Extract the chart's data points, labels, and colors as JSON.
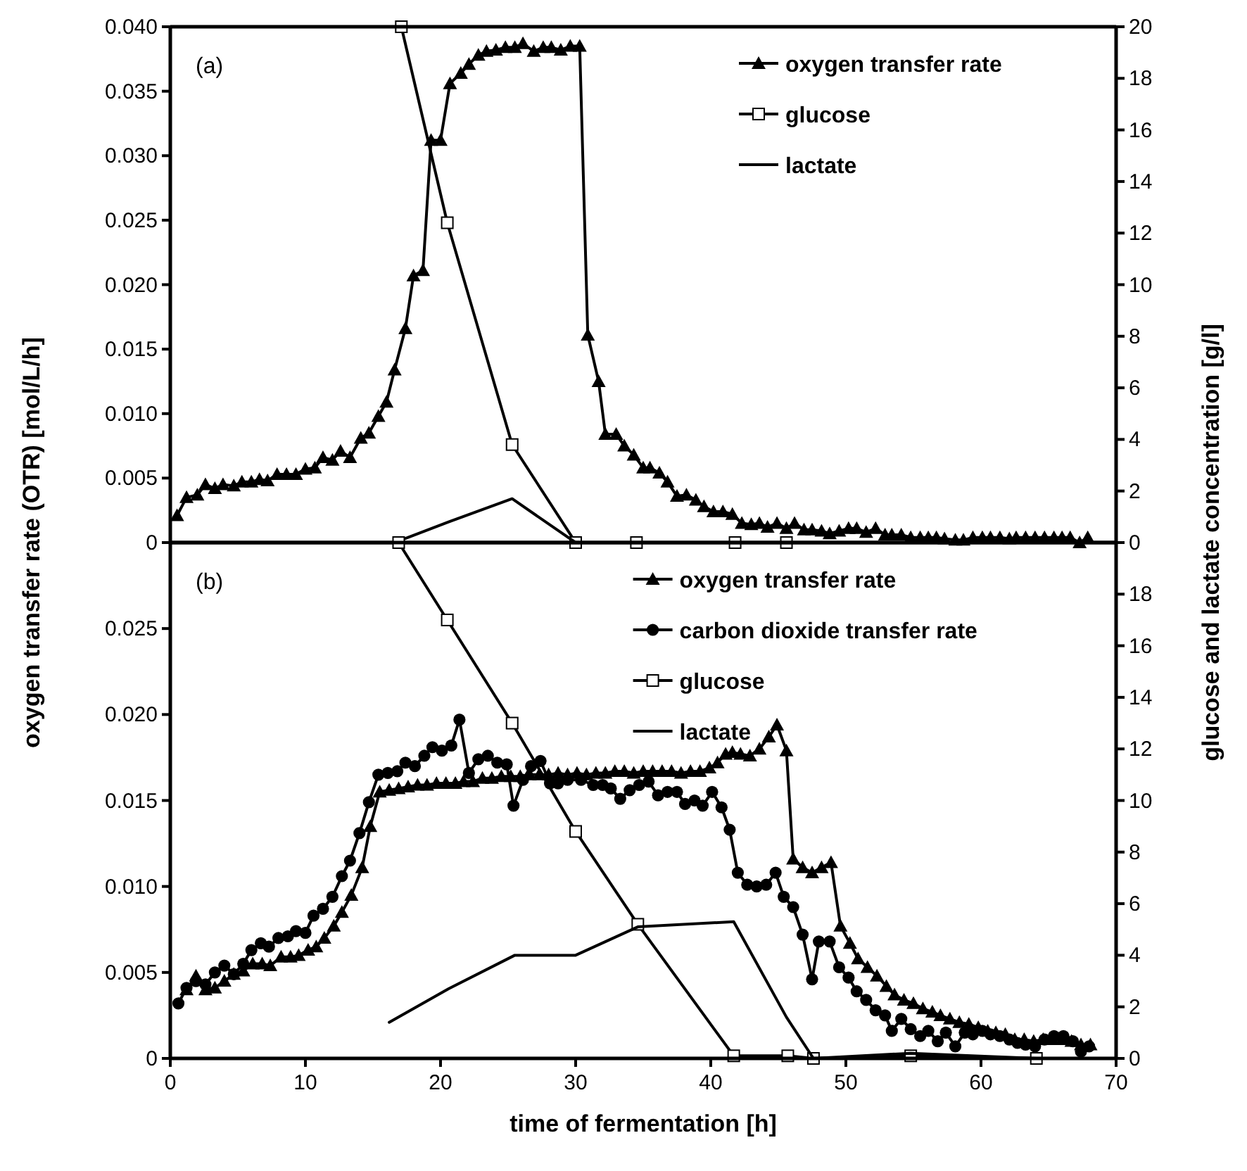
{
  "chart_data": [
    {
      "type": "line",
      "ylabel": "oxygen transfer rate (OTR)  [mol/L/h]",
      "y2label": "glucose and lactate concentration  [g/l]",
      "annotations": [
        "(a)"
      ],
      "xlim": [
        0,
        70
      ],
      "ylim": [
        0,
        0.04
      ],
      "yticks": [
        0,
        0.005,
        {
          "value": 0.01,
          "label": "0.010"
        },
        0.015,
        {
          "value": 0.02,
          "label": "0.020"
        },
        0.025,
        {
          "value": 0.03,
          "label": "0.030"
        },
        0.035,
        {
          "value": 0.04,
          "label": "0.040"
        }
      ],
      "y2lim": [
        0,
        20
      ],
      "y2ticks": [
        0,
        2,
        4,
        6,
        8,
        10,
        12,
        14,
        16,
        18,
        20
      ],
      "tick_labels": "y",
      "legend": "top right",
      "line_style": "solid",
      "series": [
        {
          "name": "oxygen transfer rate",
          "color": "#000000",
          "marker": "triangle",
          "x": [
            0.5,
            1.2,
            2.0,
            2.6,
            3.3,
            3.9,
            4.7,
            5.3,
            6.0,
            6.6,
            7.2,
            7.9,
            8.6,
            9.3,
            10.0,
            10.7,
            11.3,
            12.0,
            12.6,
            13.3,
            14.1,
            14.7,
            15.4,
            16.0,
            16.6,
            17.4,
            18.0,
            18.7,
            19.3,
            20.0,
            20.7,
            21.5,
            22.1,
            22.8,
            23.4,
            24.1,
            24.8,
            25.5,
            26.1,
            26.9,
            27.6,
            28.2,
            28.9,
            29.6,
            30.3,
            30.9,
            31.7,
            32.2,
            33.0,
            33.6,
            34.3,
            35.0,
            35.5,
            36.2,
            36.8,
            37.5,
            38.2,
            38.9,
            39.5,
            40.2,
            40.9,
            41.6,
            42.3,
            43.0,
            43.6,
            44.2,
            44.9,
            45.6,
            46.2,
            46.9,
            47.5,
            48.2,
            48.8,
            49.5,
            50.2,
            50.8,
            51.5,
            52.2,
            52.9,
            53.4,
            54.1,
            54.8,
            55.5,
            56.1,
            56.7,
            57.3,
            58.1,
            58.7,
            59.4,
            60.1,
            60.7,
            61.4,
            62.1,
            62.6,
            63.3,
            64.0,
            64.7,
            65.4,
            66.0,
            66.6,
            67.3,
            67.9
          ],
          "values": [
            0.0021,
            0.0035,
            0.0037,
            0.0045,
            0.0042,
            0.0045,
            0.0044,
            0.0047,
            0.0047,
            0.0049,
            0.0048,
            0.0053,
            0.0053,
            0.0053,
            0.0057,
            0.0058,
            0.0066,
            0.0064,
            0.0071,
            0.0066,
            0.0081,
            0.0085,
            0.0098,
            0.0109,
            0.0134,
            0.0166,
            0.0207,
            0.0211,
            0.0312,
            0.0312,
            0.0356,
            0.0364,
            0.0371,
            0.0378,
            0.0381,
            0.0382,
            0.0384,
            0.0384,
            0.0387,
            0.0381,
            0.0384,
            0.0384,
            0.0382,
            0.0385,
            0.0385,
            0.0161,
            0.0125,
            0.0084,
            0.0084,
            0.0075,
            0.0068,
            0.0058,
            0.0058,
            0.0054,
            0.0047,
            0.0036,
            0.0037,
            0.0033,
            0.0028,
            0.0024,
            0.0024,
            0.0022,
            0.0015,
            0.0014,
            0.0015,
            0.0012,
            0.0015,
            0.0011,
            0.0015,
            0.001,
            0.001,
            0.0009,
            0.0007,
            0.0009,
            0.0011,
            0.0011,
            0.0008,
            0.0011,
            0.0006,
            0.0006,
            0.0006,
            0.0004,
            0.0004,
            0.0004,
            0.0004,
            0.0003,
            0.0002,
            0.0002,
            0.0004,
            0.0004,
            0.0004,
            0.0004,
            0.0003,
            0.0004,
            0.0004,
            0.0004,
            0.0004,
            0.0004,
            0.0004,
            0.0004,
            0.0,
            0.0004
          ]
        },
        {
          "name": "glucose",
          "color": "#000000",
          "marker": "square",
          "axis": "y2",
          "x": [
            17.1,
            20.5,
            25.3,
            30.0,
            34.5,
            41.8,
            45.6
          ],
          "values": [
            20,
            12.4,
            3.8,
            0,
            0,
            0,
            0
          ]
        },
        {
          "name": "lactate",
          "color": "#000000",
          "marker": "none",
          "axis": "y2",
          "x": [
            16.6,
            20.6,
            25.3,
            30.0
          ],
          "values": [
            0,
            0.8,
            1.7,
            0
          ]
        }
      ]
    },
    {
      "type": "line",
      "xlabel": "time of fermentation  [h]",
      "annotations": [
        "(b)"
      ],
      "xlim": [
        0,
        70
      ],
      "xticks": [
        0,
        10,
        20,
        30,
        40,
        50,
        60,
        70
      ],
      "ylim": [
        0,
        0.03
      ],
      "yticks": [
        0,
        0.005,
        {
          "value": 0.01,
          "label": "0.010"
        },
        0.015,
        {
          "value": 0.02,
          "label": "0.020"
        },
        0.025
      ],
      "y2lim": [
        0,
        20
      ],
      "y2ticks": [
        0,
        2,
        4,
        6,
        8,
        10,
        12,
        14,
        16,
        18
      ],
      "legend": "top right",
      "line_style": "solid",
      "series": [
        {
          "name": "oxygen transfer rate",
          "color": "#000000",
          "marker": "triangle",
          "x": [
            1.2,
            1.9,
            2.6,
            3.3,
            4.0,
            4.7,
            5.4,
            6.1,
            6.8,
            7.4,
            8.2,
            8.9,
            9.5,
            10.2,
            10.8,
            11.4,
            12.1,
            12.7,
            13.4,
            14.2,
            14.8,
            15.5,
            16.2,
            16.9,
            17.6,
            18.3,
            19.0,
            19.7,
            20.4,
            21.1,
            21.7,
            22.4,
            23.1,
            23.8,
            24.5,
            25.2,
            25.9,
            26.6,
            27.3,
            28.0,
            28.7,
            29.4,
            30.1,
            30.8,
            31.5,
            32.2,
            32.9,
            33.6,
            34.3,
            35.0,
            35.7,
            36.4,
            37.1,
            37.8,
            38.5,
            39.2,
            39.9,
            40.5,
            41.1,
            41.6,
            42.2,
            42.9,
            43.6,
            44.3,
            44.9,
            45.6,
            46.1,
            46.8,
            47.5,
            48.2,
            48.9,
            49.6,
            50.3,
            50.9,
            51.6,
            52.3,
            53.0,
            53.6,
            54.3,
            55.0,
            55.7,
            56.4,
            57.0,
            57.7,
            58.4,
            59.1,
            59.8,
            60.5,
            61.1,
            61.8,
            62.5,
            63.2,
            63.9,
            64.6,
            65.3,
            66.0,
            66.7,
            67.4,
            68.1
          ],
          "values": [
            0.004,
            0.0048,
            0.004,
            0.0041,
            0.0045,
            0.0049,
            0.0051,
            0.0055,
            0.0055,
            0.0054,
            0.0059,
            0.0059,
            0.006,
            0.0063,
            0.0065,
            0.007,
            0.0077,
            0.0085,
            0.0095,
            0.0111,
            0.0135,
            0.0155,
            0.0156,
            0.0157,
            0.0158,
            0.0159,
            0.0159,
            0.016,
            0.016,
            0.016,
            0.0161,
            0.0161,
            0.0163,
            0.0163,
            0.0164,
            0.0164,
            0.0164,
            0.0165,
            0.0165,
            0.0165,
            0.0166,
            0.0165,
            0.0166,
            0.0165,
            0.0166,
            0.0166,
            0.0167,
            0.0167,
            0.0166,
            0.0167,
            0.0167,
            0.0167,
            0.0167,
            0.0166,
            0.0167,
            0.0167,
            0.0169,
            0.0172,
            0.0177,
            0.0178,
            0.0177,
            0.0176,
            0.018,
            0.0187,
            0.0194,
            0.0179,
            0.0116,
            0.0111,
            0.0108,
            0.0111,
            0.0114,
            0.0077,
            0.0067,
            0.0058,
            0.0053,
            0.0048,
            0.0042,
            0.0037,
            0.0034,
            0.0032,
            0.0029,
            0.0027,
            0.0025,
            0.0023,
            0.0021,
            0.002,
            0.0018,
            0.0016,
            0.0015,
            0.0014,
            0.0011,
            0.0011,
            0.001,
            0.0011,
            0.0011,
            0.0011,
            0.001,
            0.0008,
            0.0008
          ]
        },
        {
          "name": "carbon dioxide transfer rate",
          "color": "#000000",
          "marker": "circle",
          "x": [
            0.6,
            1.2,
            1.9,
            2.6,
            3.3,
            4.0,
            4.7,
            5.4,
            6.0,
            6.7,
            7.3,
            8.0,
            8.7,
            9.3,
            10.0,
            10.6,
            11.3,
            12.0,
            12.7,
            13.3,
            14.0,
            14.7,
            15.4,
            16.1,
            16.8,
            17.4,
            18.1,
            18.8,
            19.4,
            20.1,
            20.8,
            21.4,
            22.1,
            22.8,
            23.5,
            24.2,
            24.9,
            25.4,
            26.1,
            26.7,
            27.4,
            28.1,
            28.7,
            29.4,
            30.4,
            31.3,
            32.0,
            32.6,
            33.3,
            34.0,
            34.7,
            35.4,
            36.1,
            36.8,
            37.5,
            38.1,
            38.8,
            39.4,
            40.1,
            40.8,
            41.4,
            42.0,
            42.7,
            43.4,
            44.1,
            44.8,
            45.4,
            46.1,
            46.8,
            47.5,
            48.0,
            48.8,
            49.5,
            50.2,
            50.8,
            51.5,
            52.2,
            52.9,
            53.4,
            54.1,
            54.8,
            55.5,
            56.1,
            56.8,
            57.4,
            58.1,
            58.8,
            59.4,
            60.1,
            60.7,
            61.4,
            62.1,
            62.7,
            63.3,
            64.0,
            64.7,
            65.4,
            66.1,
            66.8,
            67.4,
            68.0
          ],
          "values": [
            0.0032,
            0.0041,
            0.0045,
            0.0043,
            0.005,
            0.0054,
            0.0049,
            0.0055,
            0.0063,
            0.0067,
            0.0065,
            0.007,
            0.0071,
            0.0074,
            0.0073,
            0.0083,
            0.0087,
            0.0094,
            0.0106,
            0.0115,
            0.0131,
            0.0149,
            0.0165,
            0.0166,
            0.0167,
            0.0172,
            0.017,
            0.0176,
            0.0181,
            0.0179,
            0.0182,
            0.0197,
            0.0166,
            0.0174,
            0.0176,
            0.0172,
            0.0171,
            0.0147,
            0.0162,
            0.017,
            0.0173,
            0.016,
            0.016,
            0.0162,
            0.0162,
            0.0159,
            0.0159,
            0.0157,
            0.0151,
            0.0156,
            0.0159,
            0.0161,
            0.0153,
            0.0155,
            0.0155,
            0.0148,
            0.015,
            0.0147,
            0.0155,
            0.0146,
            0.0133,
            0.0108,
            0.0101,
            0.01,
            0.0101,
            0.0108,
            0.0094,
            0.0088,
            0.0072,
            0.0046,
            0.0068,
            0.0068,
            0.0053,
            0.0047,
            0.0039,
            0.0034,
            0.0028,
            0.0025,
            0.0016,
            0.0023,
            0.0017,
            0.0013,
            0.0016,
            0.001,
            0.0015,
            0.0007,
            0.0015,
            0.0014,
            0.0016,
            0.0014,
            0.0013,
            0.0011,
            0.0009,
            0.0008,
            0.0007,
            0.0011,
            0.0013,
            0.0013,
            0.001,
            0.0004,
            0.0007
          ]
        },
        {
          "name": "glucose",
          "color": "#000000",
          "marker": "square",
          "axis": "y2",
          "x": [
            16.9,
            20.5,
            25.3,
            30.0,
            34.6,
            41.7,
            45.7,
            47.6,
            54.8,
            64.1
          ],
          "values": [
            20,
            17.0,
            13.0,
            8.8,
            5.2,
            0.1,
            0.1,
            0,
            0.1,
            0
          ]
        },
        {
          "name": "lactate",
          "color": "#000000",
          "marker": "none",
          "axis": "y2",
          "x": [
            16.2,
            20.6,
            25.5,
            30.0,
            34.6,
            41.7,
            45.6,
            47.6,
            54.8,
            64.1
          ],
          "values": [
            1.4,
            2.7,
            4.0,
            4.0,
            5.1,
            5.3,
            1.6,
            0,
            0.2,
            0
          ]
        }
      ]
    }
  ]
}
